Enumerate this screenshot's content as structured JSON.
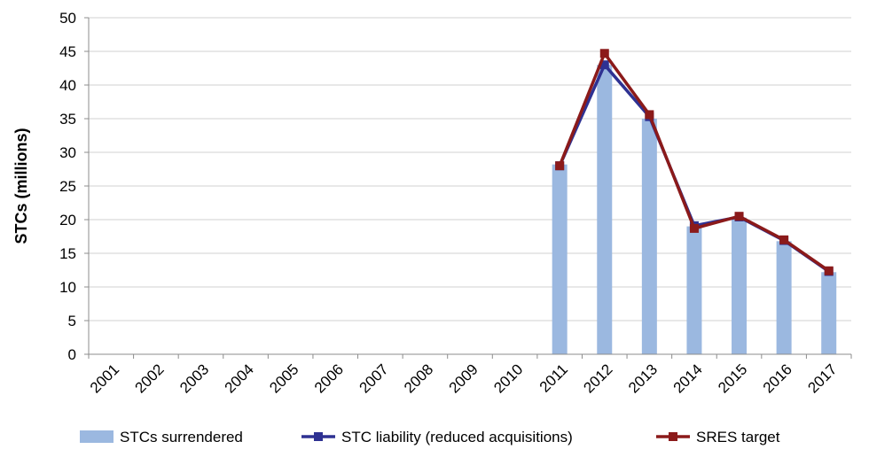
{
  "chart_data": {
    "type": "bar",
    "categories": [
      "2001",
      "2002",
      "2003",
      "2004",
      "2005",
      "2006",
      "2007",
      "2008",
      "2009",
      "2010",
      "2011",
      "2012",
      "2013",
      "2014",
      "2015",
      "2016",
      "2017"
    ],
    "ylabel": "STCs (millions)",
    "ylim": [
      0,
      50
    ],
    "yticks": [
      0,
      5,
      10,
      15,
      20,
      25,
      30,
      35,
      40,
      45,
      50
    ],
    "grid": true,
    "legend_position": "bottom",
    "series": [
      {
        "name": "STCs surrendered",
        "kind": "bar",
        "color": "#9bb8e0",
        "values": [
          null,
          null,
          null,
          null,
          null,
          null,
          null,
          null,
          null,
          null,
          28.2,
          43.0,
          35.0,
          19.0,
          20.3,
          16.8,
          12.2
        ]
      },
      {
        "name": "STC liability (reduced acquisitions)",
        "kind": "line",
        "color": "#2e3192",
        "values": [
          null,
          null,
          null,
          null,
          null,
          null,
          null,
          null,
          null,
          null,
          28.0,
          43.0,
          35.3,
          19.1,
          20.4,
          16.9,
          12.3
        ]
      },
      {
        "name": "SRES target",
        "kind": "line",
        "color": "#8b1a1a",
        "values": [
          null,
          null,
          null,
          null,
          null,
          null,
          null,
          null,
          null,
          null,
          28.0,
          44.7,
          35.6,
          18.7,
          20.5,
          17.0,
          12.4
        ]
      }
    ]
  }
}
